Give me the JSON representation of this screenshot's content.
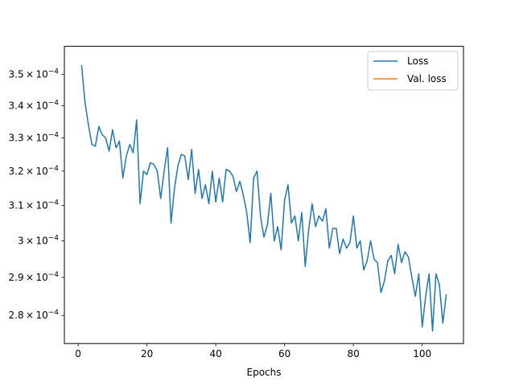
{
  "chart_data": {
    "type": "line",
    "title": "",
    "xlabel": "Epochs",
    "ylabel": "",
    "y_scale": "log",
    "xlim": [
      -4,
      112
    ],
    "ylim": [
      0.0002728,
      0.0003592
    ],
    "grid": false,
    "legend_placement": "top-right",
    "x_ticks": [
      0,
      20,
      40,
      60,
      80,
      100
    ],
    "x_tick_labels": [
      "0",
      "20",
      "40",
      "60",
      "80",
      "100"
    ],
    "y_ticks": [
      0.00028,
      0.00029,
      0.0003,
      0.00031,
      0.00032,
      0.00033,
      0.00034,
      0.00035
    ],
    "y_tick_labels": [
      {
        "base": "2.8",
        "exp": "−4"
      },
      {
        "base": "2.9",
        "exp": "−4"
      },
      {
        "base": "3",
        "exp": "−4"
      },
      {
        "base": "3.1",
        "exp": "−4"
      },
      {
        "base": "3.2",
        "exp": "−4"
      },
      {
        "base": "3.3",
        "exp": "−4"
      },
      {
        "base": "3.4",
        "exp": "−4"
      },
      {
        "base": "3.5",
        "exp": "−4"
      }
    ],
    "series": [
      {
        "name": "Loss",
        "color": "#1f77b4",
        "x": [
          1,
          2,
          3,
          4,
          5,
          6,
          7,
          8,
          9,
          10,
          11,
          12,
          13,
          14,
          15,
          16,
          17,
          18,
          19,
          20,
          21,
          22,
          23,
          24,
          25,
          26,
          27,
          28,
          29,
          30,
          31,
          32,
          33,
          34,
          35,
          36,
          37,
          38,
          39,
          40,
          41,
          42,
          43,
          44,
          45,
          46,
          47,
          48,
          49,
          50,
          51,
          52,
          53,
          54,
          55,
          56,
          57,
          58,
          59,
          60,
          61,
          62,
          63,
          64,
          65,
          66,
          67,
          68,
          69,
          70,
          71,
          72,
          73,
          74,
          75,
          76,
          77,
          78,
          79,
          80,
          81,
          82,
          83,
          84,
          85,
          86,
          87,
          88,
          89,
          90,
          91,
          92,
          93,
          94,
          95,
          96,
          97,
          98,
          99,
          100,
          101,
          102,
          103,
          104,
          105,
          106,
          107
        ],
        "y": [
          0.000353,
          0.000341,
          0.000334,
          0.000328,
          0.0003275,
          0.0003335,
          0.000331,
          0.00033,
          0.000326,
          0.0003325,
          0.000327,
          0.000329,
          0.000318,
          0.0003245,
          0.000328,
          0.0003255,
          0.0003355,
          0.0003105,
          0.00032,
          0.000319,
          0.0003225,
          0.000322,
          0.00032,
          0.000312,
          0.00032,
          0.000327,
          0.000305,
          0.000315,
          0.0003215,
          0.000325,
          0.0003245,
          0.0003175,
          0.0003265,
          0.0003135,
          0.0003205,
          0.000312,
          0.000316,
          0.0003105,
          0.00032,
          0.000311,
          0.000318,
          0.000311,
          0.0003205,
          0.00032,
          0.0003185,
          0.000314,
          0.000317,
          0.000313,
          0.000308,
          0.0002995,
          0.000318,
          0.00032,
          0.000307,
          0.000301,
          0.0003045,
          0.0003135,
          0.0003,
          0.000304,
          0.0002975,
          0.0003115,
          0.000316,
          0.000305,
          0.000307,
          0.0003,
          0.000308,
          0.000293,
          0.000303,
          0.0003105,
          0.000304,
          0.000307,
          0.0003055,
          0.000309,
          0.000298,
          0.0003035,
          0.0003035,
          0.0002965,
          0.0003005,
          0.000298,
          0.0002995,
          0.000307,
          0.000298,
          0.0003,
          0.000292,
          0.0002945,
          0.0003,
          0.000295,
          0.000294,
          0.000286,
          0.000289,
          0.0002945,
          0.000296,
          0.000291,
          0.000299,
          0.000294,
          0.000297,
          0.0002955,
          0.00029,
          0.000285,
          0.000291,
          0.000277,
          0.000285,
          0.000291,
          0.000276,
          0.000291,
          0.000288,
          0.000278,
          0.0002855
        ]
      },
      {
        "name": "Val. loss",
        "color": "#ff7f0e",
        "x": [],
        "y": []
      }
    ]
  }
}
